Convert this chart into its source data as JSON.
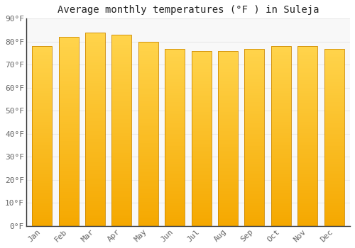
{
  "title": "Average monthly temperatures (°F ) in Suleja",
  "months": [
    "Jan",
    "Feb",
    "Mar",
    "Apr",
    "May",
    "Jun",
    "Jul",
    "Aug",
    "Sep",
    "Oct",
    "Nov",
    "Dec"
  ],
  "values": [
    78,
    82,
    84,
    83,
    80,
    77,
    76,
    76,
    77,
    78,
    78,
    77
  ],
  "bar_color_bottom": "#F5A800",
  "bar_color_top": "#FFD44C",
  "bar_edge_color": "#CC8800",
  "background_color": "#FFFFFF",
  "plot_bg_color": "#F8F8F8",
  "grid_color": "#E8E8E8",
  "ylim": [
    0,
    90
  ],
  "yticks": [
    0,
    10,
    20,
    30,
    40,
    50,
    60,
    70,
    80,
    90
  ],
  "ytick_labels": [
    "0°F",
    "10°F",
    "20°F",
    "30°F",
    "40°F",
    "50°F",
    "60°F",
    "70°F",
    "80°F",
    "90°F"
  ],
  "title_fontsize": 10,
  "tick_fontsize": 8,
  "font_family": "monospace",
  "bar_width": 0.75,
  "spine_color": "#333333",
  "tick_color": "#666666"
}
